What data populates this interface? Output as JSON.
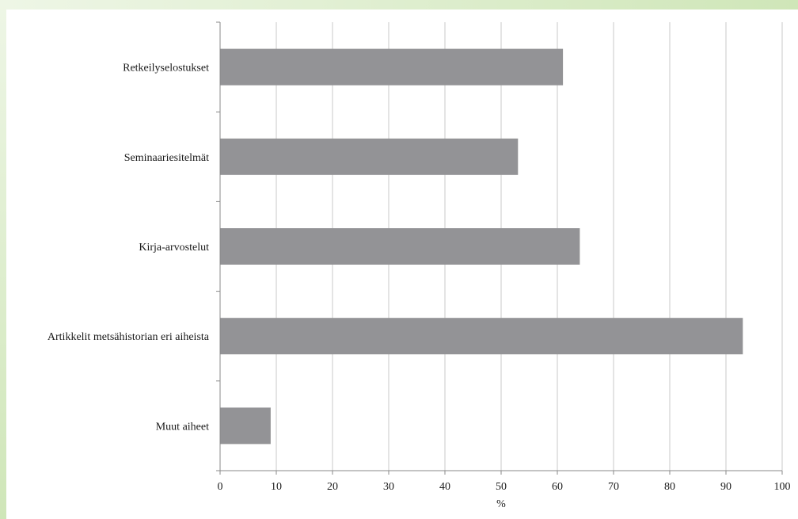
{
  "colors": {
    "bar": "#939396",
    "grid": "#c8c8c8",
    "axis": "#8a8a8a",
    "text": "#1a1a1a",
    "background": "#ffffff",
    "top_band_left": "#eef6e6",
    "top_band_right": "#cfe6b8"
  },
  "chart_data": {
    "type": "bar",
    "orientation": "horizontal",
    "categories": [
      "Retkeilyselostukset",
      "Seminaariesitelmät",
      "Kirja-arvostelut",
      "Artikkelit metsähistorian eri aiheista",
      "Muut aiheet"
    ],
    "values": [
      61,
      53,
      64,
      93,
      9
    ],
    "xlabel": "%",
    "ylabel": "",
    "title": "",
    "xlim": [
      0,
      100
    ],
    "xticks": [
      "0",
      "10",
      "20",
      "30",
      "40",
      "50",
      "60",
      "70",
      "80",
      "90",
      "100"
    ],
    "grid": "vertical",
    "legend": "none"
  }
}
